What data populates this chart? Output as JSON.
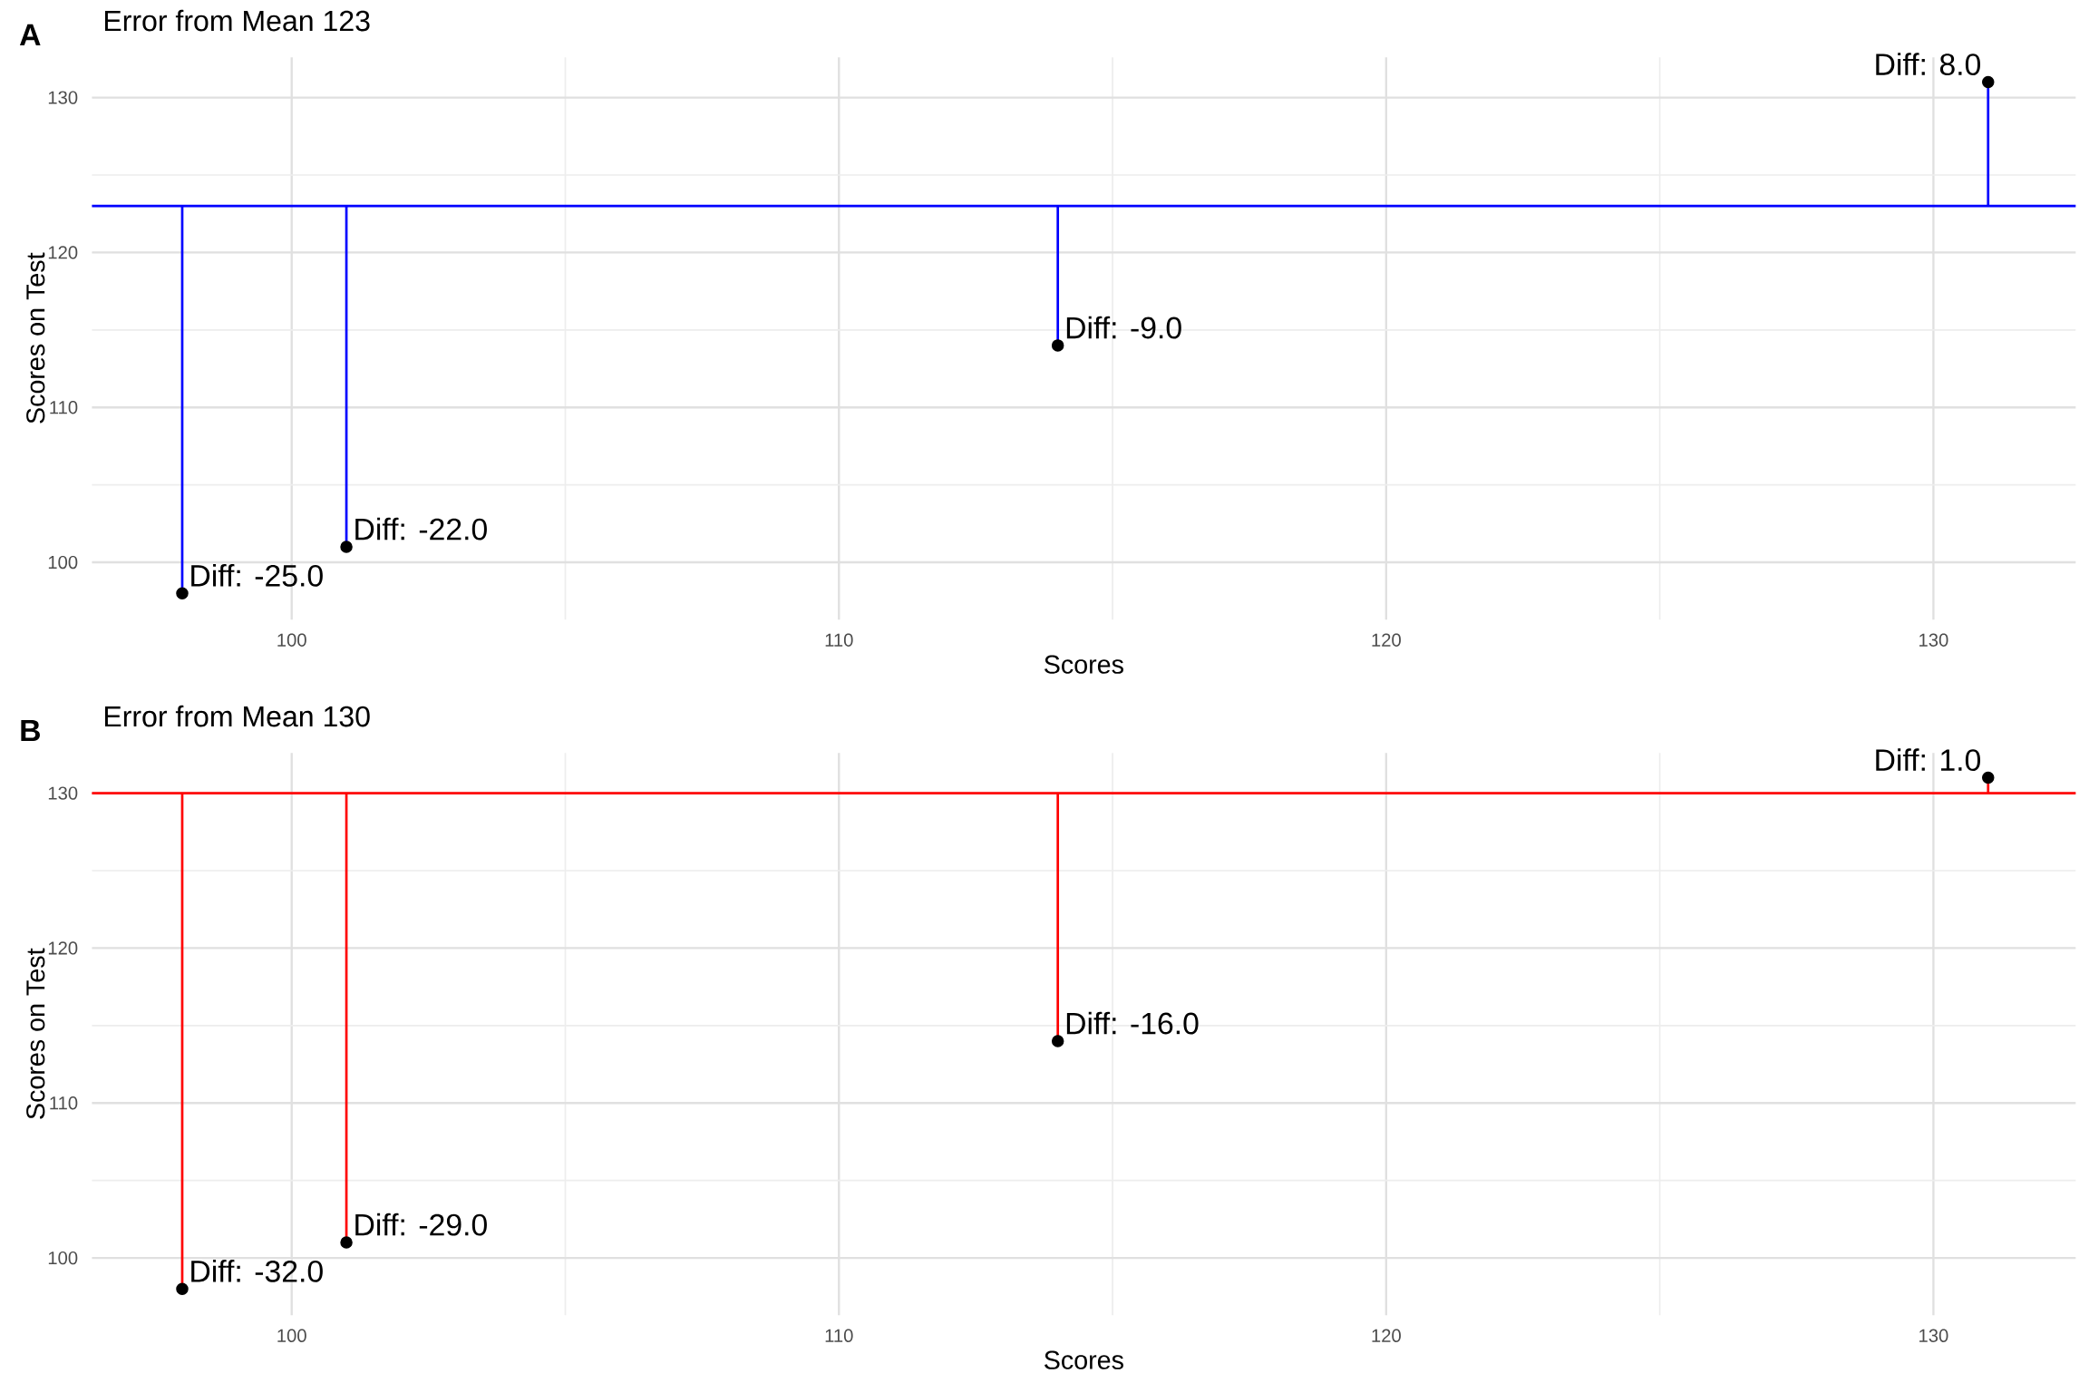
{
  "chart_data": [
    {
      "type": "lollipop",
      "title": "Error from Mean 123",
      "xlabel": "Scores",
      "ylabel": "Scores on Test",
      "annotations": [
        "A",
        {
          "text": "Diff: -25.0",
          "x": 98,
          "y": 98
        },
        {
          "text": "Diff: -22.0",
          "x": 101,
          "y": 101
        },
        {
          "text": "Diff: -9.0",
          "x": 114,
          "y": 114
        },
        {
          "text": "Diff: 8.0",
          "x": 131,
          "y": 131
        }
      ],
      "x": [
        98,
        101,
        114,
        131
      ],
      "series": [
        {
          "color": "#000000",
          "values": [
            98,
            101,
            114,
            131
          ],
          "errors": [
            [
              98,
              123
            ],
            [
              101,
              123
            ],
            [
              114,
              123
            ],
            [
              123,
              131
            ]
          ]
        }
      ],
      "ref_lines": [
        {
          "axis": "y",
          "value": 123,
          "color": "#0000ff"
        }
      ],
      "xlim": [
        96.35,
        132.6
      ],
      "ylim": [
        96.3,
        132.6
      ],
      "xticks": [
        100,
        {
          "value": 105,
          "label": null
        },
        110,
        {
          "value": 115,
          "label": null
        },
        120,
        {
          "value": 125,
          "label": null
        },
        130
      ],
      "yticks": [
        100,
        {
          "value": 105,
          "label": null
        },
        110,
        {
          "value": 115,
          "label": null
        },
        120,
        {
          "value": 125,
          "label": null
        },
        130
      ],
      "grid": true,
      "marker": "circle"
    },
    {
      "type": "lollipop",
      "title": "Error from Mean 130",
      "xlabel": "Scores",
      "ylabel": "Scores on Test",
      "annotations": [
        "B",
        {
          "text": "Diff: -32.0",
          "x": 98,
          "y": 98
        },
        {
          "text": "Diff: -29.0",
          "x": 101,
          "y": 101
        },
        {
          "text": "Diff: -16.0",
          "x": 114,
          "y": 114
        },
        {
          "text": "Diff: 1.0",
          "x": 131,
          "y": 131
        }
      ],
      "x": [
        98,
        101,
        114,
        131
      ],
      "series": [
        {
          "color": "#000000",
          "values": [
            98,
            101,
            114,
            131
          ],
          "errors": [
            [
              98,
              130
            ],
            [
              101,
              130
            ],
            [
              114,
              130
            ],
            [
              130,
              131
            ]
          ]
        }
      ],
      "ref_lines": [
        {
          "axis": "y",
          "value": 130,
          "color": "#ff0000"
        }
      ],
      "xlim": [
        96.35,
        132.6
      ],
      "ylim": [
        96.3,
        132.6
      ],
      "xticks": [
        100,
        {
          "value": 105,
          "label": null
        },
        110,
        {
          "value": 115,
          "label": null
        },
        120,
        {
          "value": 125,
          "label": null
        },
        130
      ],
      "yticks": [
        100,
        {
          "value": 105,
          "label": null
        },
        110,
        {
          "value": 115,
          "label": null
        },
        120,
        {
          "value": 125,
          "label": null
        },
        130
      ],
      "grid": true,
      "marker": "circle"
    }
  ]
}
